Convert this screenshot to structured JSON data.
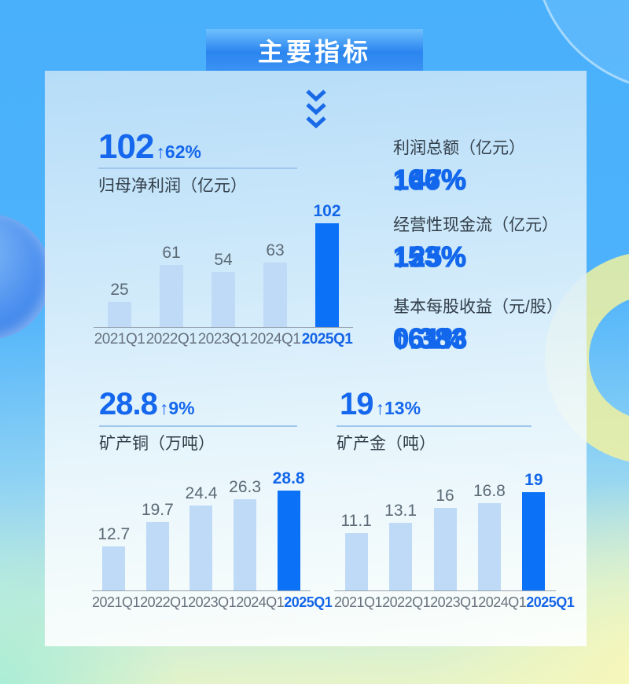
{
  "header": {
    "title": "主要指标"
  },
  "metrics": {
    "net_profit": {
      "value": "102",
      "change": "↑62%",
      "label": "归母净利润（亿元）"
    },
    "total_profit": {
      "label": "利润总额（亿元）",
      "value": "147",
      "change": "↑66%"
    },
    "cash_flow": {
      "label": "经营性现金流（亿元）",
      "value": "125",
      "change": "↑53%"
    },
    "eps": {
      "label": "基本每股收益（元/股）",
      "value": "0.383",
      "change": "↑61%"
    },
    "copper": {
      "value": "28.8",
      "change": "↑9%",
      "label": "矿产铜（万吨）"
    },
    "gold": {
      "value": "19",
      "change": "↑13%",
      "label": "矿产金（吨）"
    }
  },
  "colors": {
    "accent_blue": "#1267ec",
    "banner_blue": "#2b85ef",
    "bar_light": "#bfdaf7",
    "bar_highlight": "#0b72f8",
    "label_gray": "#5b6a76",
    "background_top": "#49b0fb",
    "background_bottom_left": "#a5ecd8",
    "background_bottom_right": "#f6f7ba"
  },
  "chart_data": [
    {
      "type": "bar",
      "name": "net_profit_chart",
      "title": "归母净利润（亿元）",
      "categories": [
        "2021Q1",
        "2022Q1",
        "2023Q1",
        "2024Q1",
        "2025Q1"
      ],
      "values": [
        25,
        61,
        54,
        63,
        102
      ],
      "value_labels": [
        "25",
        "61",
        "54",
        "63",
        "102"
      ],
      "highlight_index": 4,
      "ylim": [
        0,
        110
      ],
      "grid": false,
      "legend": "none"
    },
    {
      "type": "bar",
      "name": "copper_chart",
      "title": "矿产铜（万吨）",
      "categories": [
        "2021Q1",
        "2022Q1",
        "2023Q1",
        "2024Q1",
        "2025Q1"
      ],
      "values": [
        12.7,
        19.7,
        24.4,
        26.3,
        28.8
      ],
      "value_labels": [
        "12.7",
        "19.7",
        "24.4",
        "26.3",
        "28.8"
      ],
      "highlight_index": 4,
      "ylim": [
        0,
        32
      ],
      "grid": false,
      "legend": "none"
    },
    {
      "type": "bar",
      "name": "gold_chart",
      "title": "矿产金（吨）",
      "categories": [
        "2021Q1",
        "2022Q1",
        "2023Q1",
        "2024Q1",
        "2025Q1"
      ],
      "values": [
        11.1,
        13.1,
        16,
        16.8,
        19
      ],
      "value_labels": [
        "11.1",
        "13.1",
        "16",
        "16.8",
        "19"
      ],
      "highlight_index": 4,
      "ylim": [
        0,
        21
      ],
      "grid": false,
      "legend": "none"
    }
  ]
}
